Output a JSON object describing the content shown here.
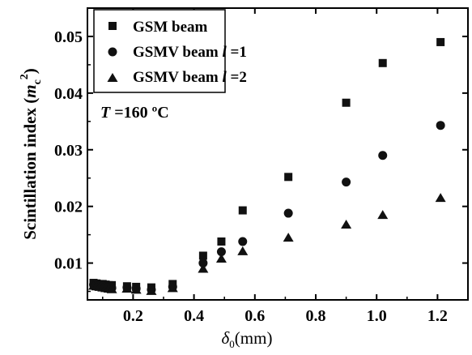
{
  "chart_data": {
    "type": "scatter",
    "xlabel": "δ0(mm)",
    "ylabel": "Scintillation index (mc2)",
    "xlim": [
      0.05,
      1.3
    ],
    "ylim": [
      0.0035,
      0.055
    ],
    "xticks": [
      0.2,
      0.4,
      0.6,
      0.8,
      1.0,
      1.2
    ],
    "xtick_labels": [
      "0.2",
      "0.4",
      "0.6",
      "0.8",
      "1.0",
      "1.2"
    ],
    "yticks": [
      0.01,
      0.02,
      0.03,
      0.04,
      0.05
    ],
    "ytick_labels": [
      "0.01",
      "0.02",
      "0.03",
      "0.04",
      "0.05"
    ],
    "annotation": "T =160 ºC",
    "legend_position": "top-left",
    "series": [
      {
        "name": "GSM beam",
        "marker": "square",
        "x": [
          0.07,
          0.08,
          0.09,
          0.1,
          0.11,
          0.12,
          0.13,
          0.18,
          0.21,
          0.26,
          0.33,
          0.43,
          0.49,
          0.56,
          0.71,
          0.9,
          1.02,
          1.21
        ],
        "y": [
          0.0065,
          0.0064,
          0.0063,
          0.0063,
          0.0062,
          0.0061,
          0.0061,
          0.0059,
          0.0058,
          0.0057,
          0.0063,
          0.0113,
          0.0138,
          0.0193,
          0.0252,
          0.0383,
          0.0453,
          0.049
        ]
      },
      {
        "name": "GSMV beam l =1",
        "marker": "circle",
        "x": [
          0.07,
          0.08,
          0.09,
          0.1,
          0.11,
          0.12,
          0.13,
          0.18,
          0.21,
          0.26,
          0.33,
          0.43,
          0.49,
          0.56,
          0.71,
          0.9,
          1.02,
          1.21
        ],
        "y": [
          0.0062,
          0.0061,
          0.006,
          0.0059,
          0.0058,
          0.0057,
          0.0056,
          0.0057,
          0.0055,
          0.0053,
          0.0058,
          0.01,
          0.012,
          0.0138,
          0.0188,
          0.0243,
          0.029,
          0.0343
        ]
      },
      {
        "name": "GSMV beam l =2",
        "marker": "triangle",
        "x": [
          0.07,
          0.08,
          0.09,
          0.1,
          0.11,
          0.12,
          0.13,
          0.18,
          0.21,
          0.26,
          0.33,
          0.43,
          0.49,
          0.56,
          0.71,
          0.9,
          1.02,
          1.21
        ],
        "y": [
          0.006,
          0.0059,
          0.0058,
          0.0057,
          0.0056,
          0.0055,
          0.0054,
          0.0055,
          0.0053,
          0.0051,
          0.0056,
          0.009,
          0.0108,
          0.0121,
          0.0145,
          0.0168,
          0.0185,
          0.0215
        ]
      }
    ]
  }
}
